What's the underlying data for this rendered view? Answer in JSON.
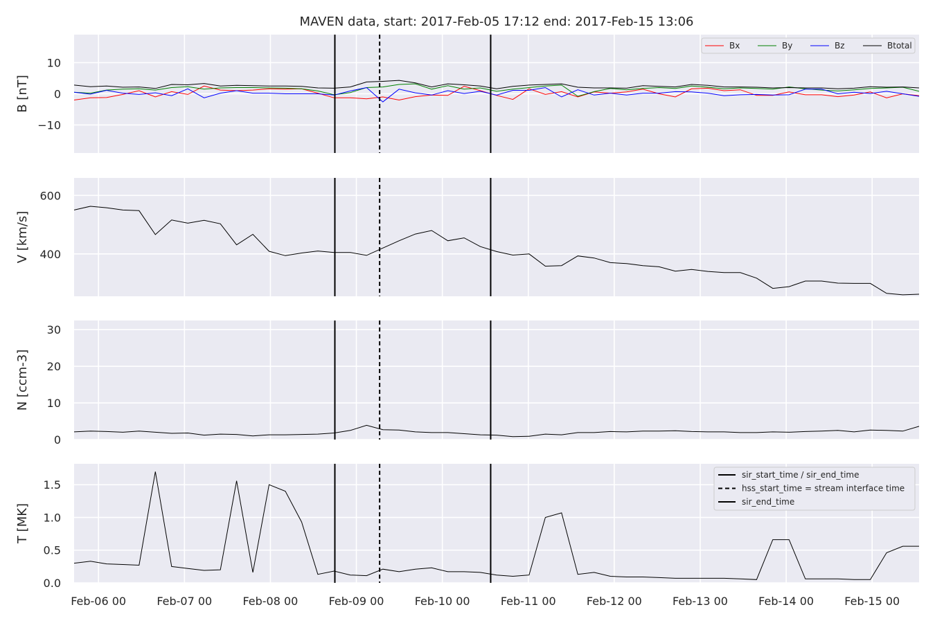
{
  "title": "MAVEN data, start: 2017-Feb-05 17:12  end: 2017-Feb-15 13:06",
  "x_ticks": [
    "Feb-06 00",
    "Feb-07 00",
    "Feb-08 00",
    "Feb-09 00",
    "Feb-10 00",
    "Feb-11 00",
    "Feb-12 00",
    "Feb-13 00",
    "Feb-14 00",
    "Feb-15 00"
  ],
  "colors": {
    "Bx": "#ff0000",
    "By": "#008000",
    "Bz": "#0000ff",
    "Btotal": "#000000",
    "grid_bg": "#eaeaf2"
  },
  "legend_field": [
    "Bx",
    "By",
    "Bz",
    "Btotal"
  ],
  "legend_events": [
    "sir_start_time / sir_end_time",
    "hss_start_time = stream interface time",
    "sir_end_time"
  ],
  "chart_data": {
    "type": "line",
    "x_range": [
      "2017-02-05 17:12",
      "2017-02-15 13:06"
    ],
    "event_lines": {
      "sir_start_time": "2017-02-08 18:00",
      "hss_start_time": "2017-02-09 06:30",
      "sir_end_time": "2017-02-10 13:30"
    },
    "panels": [
      {
        "ylabel": "B [nT]",
        "ylim": [
          -19,
          19
        ],
        "yticks": [
          -10,
          0,
          10
        ],
        "legend_position": "top-right",
        "series": [
          {
            "name": "Bx",
            "values": [
              -2,
              -1.3,
              -1.2,
              -0.2,
              1,
              -1,
              0.7,
              -0.2,
              2.5,
              1.2,
              1,
              1.2,
              1.6,
              1.5,
              1.6,
              0.2,
              -1.3,
              -1.3,
              -1.6,
              -1,
              -2,
              -0.9,
              -0.4,
              -0.5,
              2.4,
              1,
              -0.5,
              -1.8,
              1.6,
              -0.2,
              0.7,
              -1,
              0.6,
              0.2,
              0.6,
              1.5,
              0,
              -1,
              1.6,
              1.8,
              1,
              1.3,
              -0.5,
              -0.5,
              0.6,
              -0.3,
              -0.3,
              -0.9,
              -0.4,
              0.6,
              -1.3,
              0,
              -0.6
            ]
          },
          {
            "name": "By",
            "values": [
              0.5,
              0.2,
              1.2,
              1.5,
              1.6,
              1.2,
              2,
              2.3,
              1.5,
              1.9,
              2,
              2,
              1.9,
              1.8,
              1.6,
              0.9,
              -0.3,
              0.4,
              2,
              2.2,
              3,
              3.2,
              1.5,
              2.6,
              1.5,
              1.9,
              0.8,
              1.5,
              2,
              2.5,
              2.8,
              -0.8,
              0.7,
              1.7,
              1.3,
              1.7,
              2,
              1.7,
              2.5,
              2.1,
              1.6,
              1.9,
              1.7,
              1.5,
              2.2,
              1.6,
              1.2,
              0.9,
              1.3,
              1.7,
              1.9,
              2.1,
              0.8
            ]
          },
          {
            "name": "Bz",
            "values": [
              0.5,
              -0.1,
              1.1,
              0.2,
              -0.2,
              0.3,
              -0.6,
              1.6,
              -1.3,
              0.2,
              1,
              0.2,
              0.2,
              0,
              0,
              0,
              -0.4,
              0.9,
              2,
              -2.6,
              1.5,
              0.3,
              -0.4,
              1,
              0.1,
              0.8,
              -0.4,
              1.1,
              1.1,
              2,
              -1,
              1.3,
              -0.4,
              0.2,
              -0.4,
              0.2,
              0.2,
              0.7,
              0.6,
              0.2,
              -0.6,
              -0.3,
              -0.2,
              -0.4,
              -0.3,
              1.5,
              1.5,
              0,
              0.5,
              0.1,
              0.8,
              0,
              -0.8
            ]
          },
          {
            "name": "Btotal",
            "values": [
              2.8,
              2.3,
              2.5,
              2.1,
              2.2,
              1.7,
              3,
              2.9,
              3.3,
              2.5,
              2.7,
              2.6,
              2.5,
              2.5,
              2.4,
              1.9,
              1.8,
              2.2,
              3.8,
              4,
              4.3,
              3.5,
              2.2,
              3.2,
              2.9,
              2.5,
              1.6,
              2.4,
              2.8,
              3,
              3.2,
              2.1,
              1.9,
              1.9,
              1.8,
              2.6,
              2.4,
              2.2,
              3,
              2.7,
              2.2,
              2.2,
              2.1,
              1.9,
              2,
              1.9,
              1.9,
              1.6,
              1.8,
              2.3,
              2.1,
              2.2,
              1.9
            ]
          }
        ]
      },
      {
        "ylabel": "V [km/s]",
        "ylim": [
          255,
          660
        ],
        "yticks": [
          400,
          600
        ],
        "series": [
          {
            "name": "",
            "values": [
              550,
              563,
              558,
              550,
              548,
              466,
              516,
              505,
              515,
              503,
              431,
              467,
              409,
              394,
              403,
              410,
              405,
              405,
              395,
              420,
              445,
              468,
              480,
              445,
              455,
              425,
              408,
              396,
              400,
              358,
              360,
              393,
              386,
              370,
              367,
              360,
              356,
              341,
              347,
              340,
              336,
              336,
              317,
              282,
              288,
              307,
              307,
              300,
              299,
              299,
              265,
              260,
              262
            ]
          }
        ]
      },
      {
        "ylabel": "N [ccm-3]",
        "ylim": [
          0,
          32.5
        ],
        "yticks": [
          0,
          10,
          20,
          30
        ],
        "series": [
          {
            "name": "",
            "values": [
              2.1,
              2.3,
              2.2,
              2.0,
              2.3,
              2.0,
              1.7,
              1.8,
              1.2,
              1.5,
              1.4,
              1.0,
              1.3,
              1.3,
              1.4,
              1.5,
              1.8,
              2.5,
              3.9,
              2.7,
              2.6,
              2.1,
              1.9,
              1.9,
              1.6,
              1.3,
              1.2,
              0.8,
              0.9,
              1.5,
              1.3,
              1.9,
              1.9,
              2.2,
              2.1,
              2.3,
              2.3,
              2.4,
              2.2,
              2.1,
              2.1,
              1.9,
              1.9,
              2.1,
              2.0,
              2.2,
              2.3,
              2.5,
              2.1,
              2.6,
              2.5,
              2.3,
              3.6
            ]
          }
        ]
      },
      {
        "ylabel": "T [MK]",
        "ylim": [
          0,
          1.82
        ],
        "yticks": [
          0.0,
          0.5,
          1.0,
          1.5
        ],
        "legend_position": "top-right",
        "series": [
          {
            "name": "",
            "values": [
              0.3,
              0.33,
              0.29,
              0.28,
              0.27,
              1.7,
              0.25,
              0.22,
              0.19,
              0.2,
              1.56,
              0.16,
              1.5,
              1.4,
              0.93,
              0.13,
              0.18,
              0.12,
              0.11,
              0.21,
              0.17,
              0.21,
              0.23,
              0.17,
              0.17,
              0.16,
              0.12,
              0.1,
              0.12,
              1.0,
              1.07,
              0.13,
              0.16,
              0.1,
              0.09,
              0.09,
              0.08,
              0.07,
              0.07,
              0.07,
              0.07,
              0.06,
              0.05,
              0.66,
              0.66,
              0.06,
              0.06,
              0.06,
              0.05,
              0.05,
              0.46,
              0.56,
              0.56
            ]
          }
        ]
      }
    ]
  }
}
